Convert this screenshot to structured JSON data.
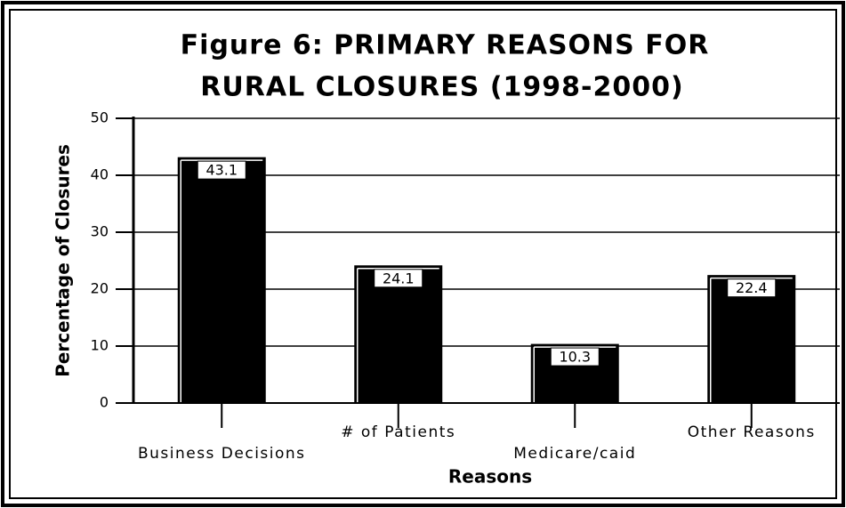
{
  "chart_data": {
    "type": "bar",
    "title": [
      "Figure 6: PRIMARY REASONS FOR",
      "RURAL CLOSURES (1998-2000)"
    ],
    "y_label": "Percentage of Closures",
    "x_label": "Reasons",
    "categories": [
      "Business Decisions",
      "# of Patients",
      "Medicare/caid",
      "Other Reasons"
    ],
    "values": [
      43.1,
      24.1,
      10.3,
      22.4
    ],
    "color": "#000000",
    "ylim": [
      0,
      50
    ],
    "yticks": [
      0,
      10,
      20,
      30,
      40,
      50
    ],
    "grid": true
  }
}
